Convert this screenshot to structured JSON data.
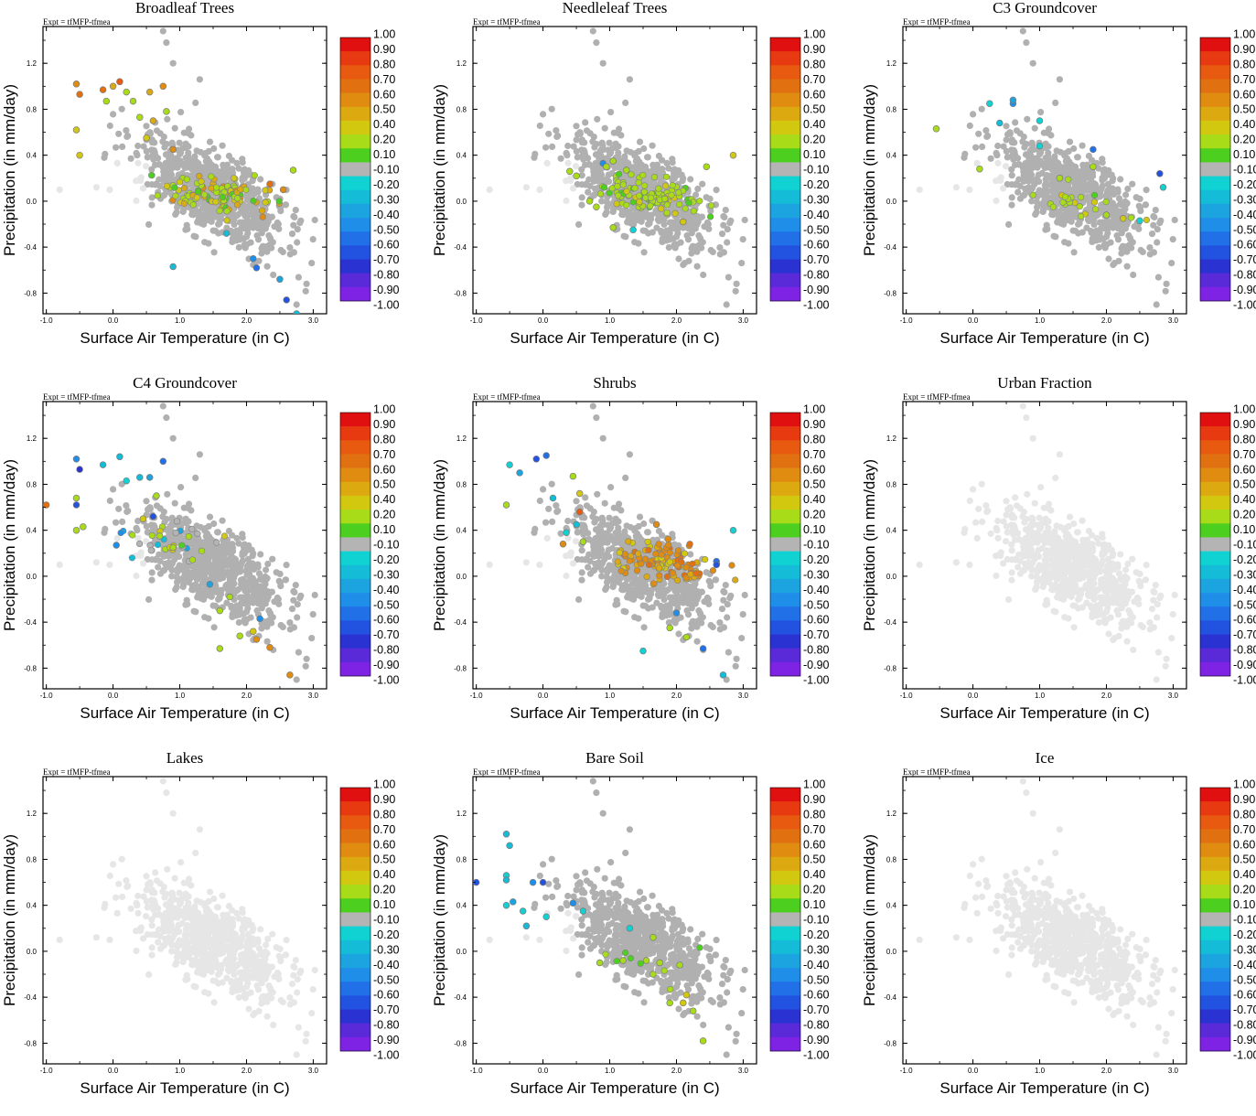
{
  "figure": {
    "expt_label": "Expt = tfMFP-tfmea",
    "xlabel": "Surface Air Temperature (in C)",
    "ylabel": "Precipitation (in mm/day)",
    "x_ticks": [
      "-1.0",
      "0.0",
      "1.0",
      "2.0",
      "3.0"
    ],
    "y_ticks": [
      "1.2",
      "0.8",
      "0.4",
      "0.0",
      "-0.4",
      "-0.8"
    ],
    "colorbar": {
      "labels": [
        "1.00",
        "0.90",
        "0.80",
        "0.70",
        "0.60",
        "0.50",
        "0.40",
        "0.20",
        "0.10",
        "-0.10",
        "-0.20",
        "-0.30",
        "-0.40",
        "-0.50",
        "-0.60",
        "-0.70",
        "-0.80",
        "-0.90",
        "-1.00"
      ],
      "colors": [
        "#e01010",
        "#e83a10",
        "#e85a10",
        "#e07010",
        "#e08c10",
        "#dcaa10",
        "#d2c810",
        "#a8dc18",
        "#4ccf1e",
        "#b4b4b4",
        "#10d2d2",
        "#14bcd8",
        "#1ca4e0",
        "#1e8ee8",
        "#2270e8",
        "#2252e0",
        "#2a32d2",
        "#5a2ad8",
        "#7e22e4"
      ]
    },
    "colors": {
      "background_points": "#e6e6e6",
      "neutral_points": "#b0b0b0"
    }
  },
  "chart_data": [
    {
      "type": "scatter",
      "title": "Broadleaf Trees",
      "xlabel": "Surface Air Temperature (in C)",
      "ylabel": "Precipitation (in mm/day)",
      "xlim": [
        -1.05,
        3.2
      ],
      "ylim": [
        -0.98,
        1.52
      ],
      "colored_cluster": {
        "x_mean": 1.5,
        "y_mean": 0.05,
        "count": 120,
        "value_range": [
          0.1,
          0.6
        ]
      },
      "highlighted_points": [
        {
          "x": -0.55,
          "y": 1.02,
          "v": 0.55
        },
        {
          "x": -0.5,
          "y": 0.93,
          "v": 0.65
        },
        {
          "x": -0.15,
          "y": 0.97,
          "v": 0.7
        },
        {
          "x": 0.0,
          "y": 1.0,
          "v": 0.5
        },
        {
          "x": 0.1,
          "y": 1.04,
          "v": 0.75
        },
        {
          "x": 0.2,
          "y": 0.95,
          "v": 0.2
        },
        {
          "x": -0.1,
          "y": 0.87,
          "v": 0.2
        },
        {
          "x": 0.3,
          "y": 0.87,
          "v": 0.3
        },
        {
          "x": 0.55,
          "y": 0.95,
          "v": 0.45
        },
        {
          "x": 0.75,
          "y": 1.0,
          "v": 0.55
        },
        {
          "x": 0.4,
          "y": 0.73,
          "v": 0.3
        },
        {
          "x": 0.6,
          "y": 0.7,
          "v": 0.45
        },
        {
          "x": 0.8,
          "y": 0.78,
          "v": 0.2
        },
        {
          "x": -0.55,
          "y": 0.62,
          "v": 0.35
        },
        {
          "x": 0.5,
          "y": 0.55,
          "v": 0.4
        },
        {
          "x": -0.5,
          "y": 0.4,
          "v": 0.35
        },
        {
          "x": 0.9,
          "y": 0.45,
          "v": 0.55
        },
        {
          "x": 2.55,
          "y": 0.1,
          "v": 0.6
        },
        {
          "x": 2.35,
          "y": 0.15,
          "v": 0.7
        },
        {
          "x": 2.7,
          "y": 0.27,
          "v": 0.2
        },
        {
          "x": 1.7,
          "y": -0.28,
          "v": -0.3
        },
        {
          "x": 2.1,
          "y": -0.5,
          "v": -0.5
        },
        {
          "x": 2.15,
          "y": -0.58,
          "v": -0.6
        },
        {
          "x": 2.5,
          "y": -0.68,
          "v": -0.4
        },
        {
          "x": 0.9,
          "y": -0.57,
          "v": -0.3
        },
        {
          "x": 2.6,
          "y": -0.86,
          "v": -0.7
        },
        {
          "x": 2.75,
          "y": -0.98,
          "v": -0.3
        }
      ]
    },
    {
      "type": "scatter",
      "title": "Needleleaf Trees",
      "xlabel": "Surface Air Temperature (in C)",
      "ylabel": "Precipitation (in mm/day)",
      "xlim": [
        -1.05,
        3.2
      ],
      "ylim": [
        -0.98,
        1.52
      ],
      "colored_cluster": {
        "x_mean": 1.6,
        "y_mean": 0.05,
        "count": 110,
        "value_range": [
          0.1,
          0.4
        ]
      },
      "highlighted_points": [
        {
          "x": 0.9,
          "y": 0.33,
          "v": -0.5
        },
        {
          "x": 1.05,
          "y": 0.35,
          "v": 0.2
        },
        {
          "x": 1.25,
          "y": 0.27,
          "v": 0.2
        },
        {
          "x": 2.85,
          "y": 0.4,
          "v": 0.4
        },
        {
          "x": 2.45,
          "y": 0.3,
          "v": 0.2
        },
        {
          "x": 0.4,
          "y": 0.26,
          "v": 0.2
        },
        {
          "x": 0.5,
          "y": 0.22,
          "v": 0.2
        },
        {
          "x": 0.95,
          "y": 0.3,
          "v": 0.2
        },
        {
          "x": 1.05,
          "y": -0.23,
          "v": 0.2
        },
        {
          "x": 1.35,
          "y": -0.25,
          "v": -0.2
        },
        {
          "x": 2.1,
          "y": -0.18,
          "v": 0.4
        },
        {
          "x": 0.8,
          "y": -0.05,
          "v": 0.2
        },
        {
          "x": 0.7,
          "y": 0.0,
          "v": 0.2
        }
      ]
    },
    {
      "type": "scatter",
      "title": "C3 Groundcover",
      "xlabel": "Surface Air Temperature (in C)",
      "ylabel": "Precipitation (in mm/day)",
      "xlim": [
        -1.05,
        3.2
      ],
      "ylim": [
        -0.98,
        1.52
      ],
      "colored_cluster": {
        "x_mean": 1.6,
        "y_mean": -0.02,
        "count": 22,
        "value_range": [
          0.1,
          0.4
        ]
      },
      "highlighted_points": [
        {
          "x": -0.55,
          "y": 0.63,
          "v": 0.2
        },
        {
          "x": 0.1,
          "y": 0.28,
          "v": 0.2
        },
        {
          "x": 0.25,
          "y": 0.85,
          "v": -0.2
        },
        {
          "x": 0.4,
          "y": 0.68,
          "v": -0.3
        },
        {
          "x": 0.6,
          "y": 0.85,
          "v": -0.5
        },
        {
          "x": 0.6,
          "y": 0.88,
          "v": -0.4
        },
        {
          "x": 1.0,
          "y": 0.48,
          "v": -0.2
        },
        {
          "x": 1.0,
          "y": 0.7,
          "v": -0.2
        },
        {
          "x": 1.8,
          "y": 0.45,
          "v": -0.6
        },
        {
          "x": 2.8,
          "y": 0.24,
          "v": -0.7
        },
        {
          "x": 2.85,
          "y": 0.12,
          "v": -0.2
        },
        {
          "x": 2.5,
          "y": -0.17,
          "v": -0.2
        },
        {
          "x": 2.25,
          "y": -0.15,
          "v": 0.4
        },
        {
          "x": 2.0,
          "y": -0.12,
          "v": 0.2
        },
        {
          "x": 1.3,
          "y": 0.2,
          "v": 0.2
        },
        {
          "x": 1.8,
          "y": 0.3,
          "v": 0.2
        }
      ]
    },
    {
      "type": "scatter",
      "title": "C4 Groundcover",
      "xlabel": "Surface Air Temperature (in C)",
      "ylabel": "Precipitation (in mm/day)",
      "xlim": [
        -1.05,
        3.2
      ],
      "ylim": [
        -0.98,
        1.52
      ],
      "colored_cluster": {
        "x_mean": 0.9,
        "y_mean": 0.3,
        "count": 30,
        "value_range": [
          -0.5,
          0.4
        ]
      },
      "highlighted_points": [
        {
          "x": -1.0,
          "y": 0.62,
          "v": 0.7
        },
        {
          "x": -0.55,
          "y": 1.02,
          "v": -0.5
        },
        {
          "x": -0.5,
          "y": 0.93,
          "v": -0.8
        },
        {
          "x": -0.55,
          "y": 0.68,
          "v": 0.2
        },
        {
          "x": -0.55,
          "y": 0.62,
          "v": -0.7
        },
        {
          "x": -0.55,
          "y": 0.4,
          "v": 0.2
        },
        {
          "x": -0.45,
          "y": 0.43,
          "v": 0.3
        },
        {
          "x": -0.15,
          "y": 0.97,
          "v": -0.3
        },
        {
          "x": 0.1,
          "y": 1.04,
          "v": -0.3
        },
        {
          "x": 0.2,
          "y": 0.83,
          "v": -0.2
        },
        {
          "x": 0.05,
          "y": 0.27,
          "v": -0.5
        },
        {
          "x": 0.4,
          "y": 0.86,
          "v": -0.3
        },
        {
          "x": 0.55,
          "y": 0.86,
          "v": -0.4
        },
        {
          "x": 0.75,
          "y": 1.0,
          "v": -0.6
        },
        {
          "x": 0.65,
          "y": 0.7,
          "v": 0.2
        },
        {
          "x": 0.45,
          "y": 0.5,
          "v": 0.4
        },
        {
          "x": 0.6,
          "y": 0.52,
          "v": -0.7
        },
        {
          "x": 0.7,
          "y": 0.35,
          "v": 0.2
        },
        {
          "x": 0.9,
          "y": 0.25,
          "v": 0.2
        },
        {
          "x": 1.45,
          "y": -0.07,
          "v": -0.4
        },
        {
          "x": 1.6,
          "y": -0.3,
          "v": 0.3
        },
        {
          "x": 1.75,
          "y": -0.18,
          "v": 0.2
        },
        {
          "x": 2.2,
          "y": -0.37,
          "v": -0.5
        },
        {
          "x": 2.1,
          "y": -0.48,
          "v": 0.4
        },
        {
          "x": 2.35,
          "y": -0.62,
          "v": 0.6
        },
        {
          "x": 2.65,
          "y": -0.86,
          "v": 0.6
        },
        {
          "x": 2.15,
          "y": -0.55,
          "v": 0.6
        },
        {
          "x": 1.9,
          "y": -0.52,
          "v": 0.2
        },
        {
          "x": 1.6,
          "y": -0.63,
          "v": 0.2
        }
      ]
    },
    {
      "type": "scatter",
      "title": "Shrubs",
      "xlabel": "Surface Air Temperature (in C)",
      "ylabel": "Precipitation (in mm/day)",
      "xlim": [
        -1.05,
        3.2
      ],
      "ylim": [
        -0.98,
        1.52
      ],
      "colored_cluster": {
        "x_mean": 1.8,
        "y_mean": 0.12,
        "count": 120,
        "value_range": [
          0.4,
          0.7
        ]
      },
      "highlighted_points": [
        {
          "x": -0.55,
          "y": 0.62,
          "v": 0.3
        },
        {
          "x": -0.5,
          "y": 0.97,
          "v": -0.2
        },
        {
          "x": -0.35,
          "y": 0.9,
          "v": -0.4
        },
        {
          "x": -0.1,
          "y": 1.02,
          "v": -0.7
        },
        {
          "x": 0.05,
          "y": 1.05,
          "v": -0.6
        },
        {
          "x": 0.15,
          "y": 0.68,
          "v": -0.3
        },
        {
          "x": 0.45,
          "y": 0.87,
          "v": 0.2
        },
        {
          "x": 0.55,
          "y": 0.72,
          "v": 0.4
        },
        {
          "x": 0.55,
          "y": 0.56,
          "v": 0.8
        },
        {
          "x": 0.5,
          "y": 0.45,
          "v": -0.3
        },
        {
          "x": 0.35,
          "y": 0.38,
          "v": -0.2
        },
        {
          "x": 0.3,
          "y": 0.28,
          "v": 0.6
        },
        {
          "x": 0.6,
          "y": 0.3,
          "v": 0.2
        },
        {
          "x": 2.85,
          "y": 0.4,
          "v": -0.2
        },
        {
          "x": 2.6,
          "y": 0.13,
          "v": -0.6
        },
        {
          "x": 2.6,
          "y": 0.1,
          "v": -0.7
        },
        {
          "x": 1.7,
          "y": 0.45,
          "v": 0.6
        },
        {
          "x": 2.0,
          "y": -0.32,
          "v": -0.5
        },
        {
          "x": 1.5,
          "y": -0.65,
          "v": -0.2
        },
        {
          "x": 2.4,
          "y": -0.63,
          "v": -0.6
        },
        {
          "x": 2.7,
          "y": -0.86,
          "v": -0.3
        },
        {
          "x": 2.15,
          "y": -0.53,
          "v": 0.2
        },
        {
          "x": 1.9,
          "y": -0.45,
          "v": 0.2
        }
      ]
    },
    {
      "type": "scatter",
      "title": "Urban Fraction",
      "xlabel": "Surface Air Temperature (in C)",
      "ylabel": "Precipitation (in mm/day)",
      "xlim": [
        -1.05,
        3.2
      ],
      "ylim": [
        -0.98,
        1.52
      ],
      "colored_cluster": null,
      "highlighted_points": []
    },
    {
      "type": "scatter",
      "title": "Lakes",
      "xlabel": "Surface Air Temperature (in C)",
      "ylabel": "Precipitation (in mm/day)",
      "xlim": [
        -1.05,
        3.2
      ],
      "ylim": [
        -0.98,
        1.52
      ],
      "colored_cluster": null,
      "highlighted_points": []
    },
    {
      "type": "scatter",
      "title": "Bare Soil",
      "xlabel": "Surface Air Temperature (in C)",
      "ylabel": "Precipitation (in mm/day)",
      "xlim": [
        -1.05,
        3.2
      ],
      "ylim": [
        -0.98,
        1.52
      ],
      "colored_cluster": {
        "x_mean": 1.5,
        "y_mean": -0.1,
        "count": 8,
        "value_range": [
          0.1,
          0.2
        ]
      },
      "highlighted_points": [
        {
          "x": -1.0,
          "y": 0.6,
          "v": -0.7
        },
        {
          "x": -0.55,
          "y": 1.02,
          "v": -0.3
        },
        {
          "x": -0.5,
          "y": 0.92,
          "v": -0.3
        },
        {
          "x": -0.55,
          "y": 0.66,
          "v": -0.2
        },
        {
          "x": -0.55,
          "y": 0.62,
          "v": -0.3
        },
        {
          "x": -0.55,
          "y": 0.4,
          "v": -0.2
        },
        {
          "x": -0.45,
          "y": 0.43,
          "v": -0.4
        },
        {
          "x": -0.3,
          "y": 0.35,
          "v": -0.2
        },
        {
          "x": -0.25,
          "y": 0.22,
          "v": -0.3
        },
        {
          "x": -0.15,
          "y": 0.6,
          "v": -0.5
        },
        {
          "x": 0.0,
          "y": 0.6,
          "v": -0.7
        },
        {
          "x": 0.05,
          "y": 0.3,
          "v": -0.2
        },
        {
          "x": 0.45,
          "y": 0.42,
          "v": -0.5
        },
        {
          "x": 0.6,
          "y": 0.35,
          "v": -0.2
        },
        {
          "x": 1.3,
          "y": 0.2,
          "v": -0.2
        },
        {
          "x": 1.65,
          "y": 0.12,
          "v": 0.2
        },
        {
          "x": 0.85,
          "y": -0.1,
          "v": 0.2
        },
        {
          "x": 1.2,
          "y": -0.08,
          "v": 0.2
        },
        {
          "x": 1.55,
          "y": -0.08,
          "v": 0.2
        },
        {
          "x": 1.75,
          "y": -0.1,
          "v": 0.2
        },
        {
          "x": 2.05,
          "y": -0.12,
          "v": 0.2
        },
        {
          "x": 2.15,
          "y": -0.38,
          "v": 0.4
        },
        {
          "x": 2.1,
          "y": -0.45,
          "v": 0.4
        },
        {
          "x": 1.9,
          "y": -0.45,
          "v": 0.3
        },
        {
          "x": 2.25,
          "y": -0.52,
          "v": 0.2
        },
        {
          "x": 2.4,
          "y": -0.78,
          "v": 0.2
        },
        {
          "x": 1.65,
          "y": -0.2,
          "v": 0.2
        }
      ]
    },
    {
      "type": "scatter",
      "title": "Ice",
      "xlabel": "Surface Air Temperature (in C)",
      "ylabel": "Precipitation (in mm/day)",
      "xlim": [
        -1.05,
        3.2
      ],
      "ylim": [
        -0.98,
        1.52
      ],
      "colored_cluster": null,
      "highlighted_points": []
    }
  ]
}
